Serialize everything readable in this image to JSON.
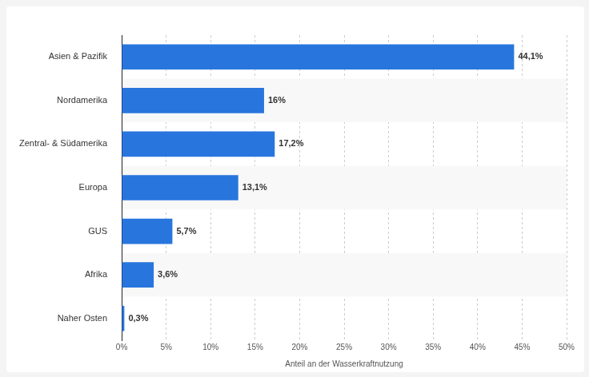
{
  "chart_data": {
    "type": "bar",
    "orientation": "horizontal",
    "categories": [
      "Asien & Pazifik",
      "Nordamerika",
      "Zentral- & Südamerika",
      "Europa",
      "GUS",
      "Afrika",
      "Naher Osten"
    ],
    "values": [
      44.1,
      16,
      17.2,
      13.1,
      5.7,
      3.6,
      0.3
    ],
    "value_labels": [
      "44,1%",
      "16%",
      "17,2%",
      "13,1%",
      "5,7%",
      "3,6%",
      "0,3%"
    ],
    "data_labels": true,
    "color": "#2876dd",
    "x_label": "Anteil an der Wasserkraftnutzung",
    "xlim": [
      0,
      50
    ],
    "xticks": [
      {
        "value": 0,
        "label": "0%"
      },
      {
        "value": 5,
        "label": "5%"
      },
      {
        "value": 10,
        "label": "10%"
      },
      {
        "value": 15,
        "label": "15%"
      },
      {
        "value": 20,
        "label": "20%"
      },
      {
        "value": 25,
        "label": "25%"
      },
      {
        "value": 30,
        "label": "30%"
      },
      {
        "value": 35,
        "label": "35%"
      },
      {
        "value": 40,
        "label": "40%"
      },
      {
        "value": 45,
        "label": "45%"
      },
      {
        "value": 50,
        "label": "50%"
      }
    ],
    "grid": true
  }
}
